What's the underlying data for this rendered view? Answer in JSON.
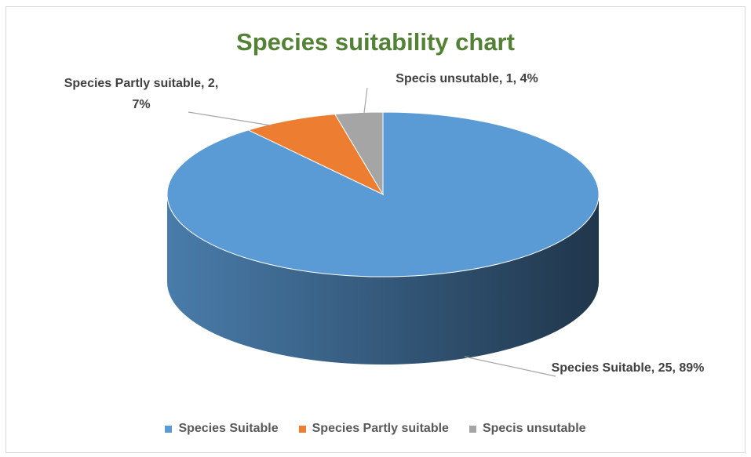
{
  "chart_data": {
    "type": "pie3d",
    "title": "Species suitability chart",
    "categories": [
      "Species Suitable",
      "Species Partly suitable",
      "Specis unsutable"
    ],
    "values": [
      25,
      2,
      1
    ],
    "value_labels": [
      "Species Suitable, 25, 89%",
      "Species Partly suitable, 2, 7%",
      "Specis unsutable, 1, 4%"
    ],
    "colors": [
      "#5b9bd5",
      "#ed7d31",
      "#a5a5a5"
    ],
    "legend": "bottom"
  }
}
